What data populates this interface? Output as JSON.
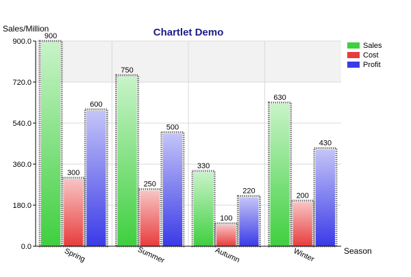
{
  "chart_data": {
    "type": "bar",
    "title": "Chartlet Demo",
    "xlabel": "Season",
    "ylabel": "Sales/Million",
    "categories": [
      "Spring",
      "Summer",
      "Autumn",
      "Winter"
    ],
    "series": [
      {
        "name": "Sales",
        "values": [
          900,
          750,
          330,
          630
        ],
        "color": "#3fcf3f"
      },
      {
        "name": "Cost",
        "values": [
          300,
          250,
          100,
          200
        ],
        "color": "#e83c3c"
      },
      {
        "name": "Profit",
        "values": [
          600,
          500,
          220,
          430
        ],
        "color": "#3a3ae8"
      }
    ],
    "y_ticks": [
      "0.0",
      "180.0",
      "360.0",
      "540.0",
      "720.0",
      "900.0"
    ],
    "ylim": [
      0,
      900
    ],
    "grid": true,
    "legend_position": "top-right"
  }
}
